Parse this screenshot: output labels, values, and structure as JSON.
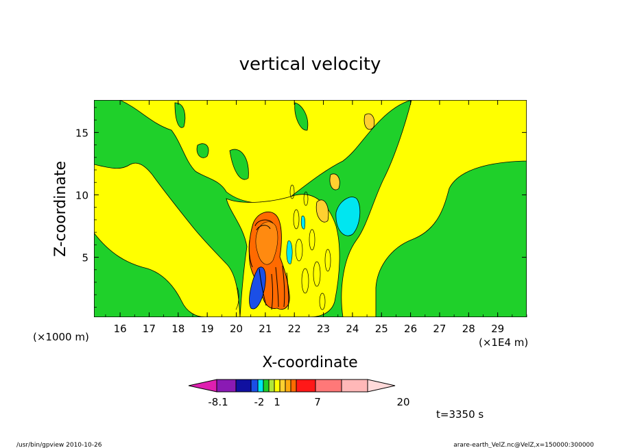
{
  "chart_data": {
    "type": "contour",
    "title": "vertical velocity",
    "xlabel": "X-coordinate",
    "ylabel": "Z-coordinate",
    "x_unit_left": "(×1000 m)",
    "x_unit_right": "(×1E4 m)",
    "x_ticks": [
      "16",
      "17",
      "18",
      "19",
      "20",
      "21",
      "22",
      "23",
      "24",
      "25",
      "26",
      "27",
      "28",
      "29"
    ],
    "y_ticks": [
      "5",
      "10",
      "15"
    ],
    "xlim": [
      15.1,
      30.0
    ],
    "ylim": [
      0.2,
      17.6
    ],
    "colorbar": {
      "labels": [
        "-8.1",
        "-2",
        "1",
        "7",
        "20"
      ],
      "colors": [
        "#df1fb0",
        "#8a1ab4",
        "#1010a0",
        "#1b4fe6",
        "#00e6f0",
        "#1fd02a",
        "#b0e63a",
        "#ffff00",
        "#ffd030",
        "#ffaa10",
        "#ff6a00",
        "#ff1818",
        "#ff7878",
        "#ffb8b8",
        "#ffdada"
      ]
    },
    "time_label": "t=3350 s"
  },
  "footer": {
    "left": "/usr/bin/gpview   2010-10-26",
    "right": "arare-earth_VelZ.nc@VelZ,x=150000:300000"
  }
}
